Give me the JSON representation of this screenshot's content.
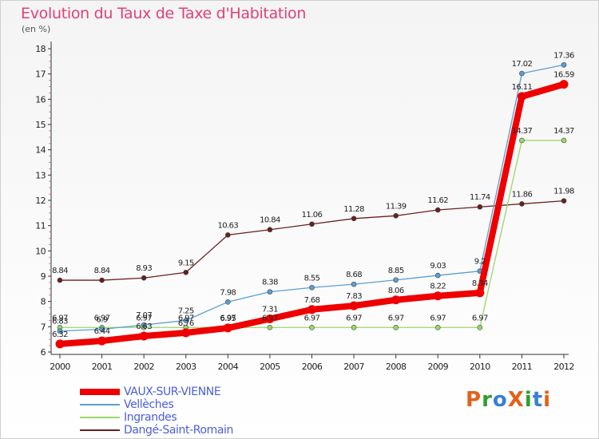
{
  "title": "Evolution du Taux de Taxe d'Habitation",
  "subtitle": "(en %)",
  "logo": {
    "text": "ProXiti",
    "letters": [
      {
        "ch": "P",
        "color": "#e2611a"
      },
      {
        "ch": "r",
        "color": "#2e9e2e"
      },
      {
        "ch": "o",
        "color": "#3a7fd6"
      },
      {
        "ch": "X",
        "color": "#e2611a"
      },
      {
        "ch": "i",
        "color": "#2e9e2e"
      },
      {
        "ch": "t",
        "color": "#3a7fd6"
      },
      {
        "ch": "i",
        "color": "#e2611a"
      }
    ]
  },
  "chart_data": {
    "type": "line",
    "title": "Evolution du Taux de Taxe d'Habitation",
    "ylabel": "(en %)",
    "xlabel": "",
    "x": [
      "2000",
      "2001",
      "2002",
      "2003",
      "2004",
      "2005",
      "2006",
      "2007",
      "2008",
      "2009",
      "2010",
      "2011",
      "2012"
    ],
    "ylim": [
      6,
      18
    ],
    "yticks": [
      6,
      7,
      8,
      9,
      10,
      11,
      12,
      13,
      14,
      15,
      16,
      17,
      18
    ],
    "grid": false,
    "legend_position": "bottom-left",
    "series": [
      {
        "name": "VAUX-SUR-VIENNE",
        "color": "#ee0000",
        "width": 8,
        "values": [
          6.32,
          6.44,
          6.63,
          6.76,
          6.95,
          7.31,
          7.68,
          7.83,
          8.06,
          8.22,
          8.34,
          16.11,
          16.59
        ],
        "labels": [
          "6.32",
          "6.44",
          "6.63",
          "6.76",
          "6.95",
          "7.31",
          "7.68",
          "7.83",
          "8.06",
          "8.22",
          "8.34",
          "16.11",
          "16.59"
        ]
      },
      {
        "name": "Vellèches",
        "color": "#5a9fd4",
        "width": 1.3,
        "values": [
          6.83,
          6.9,
          7.07,
          7.25,
          7.98,
          8.38,
          8.55,
          8.68,
          8.85,
          9.03,
          9.2,
          17.02,
          17.36
        ],
        "labels": [
          "6.83",
          "6.9",
          "7.07",
          "7.25",
          "7.98",
          "8.38",
          "8.55",
          "8.68",
          "8.85",
          "9.03",
          "9.2",
          "17.02",
          "17.36"
        ]
      },
      {
        "name": "Ingrandes",
        "color": "#9ad86a",
        "width": 1.3,
        "values": [
          6.97,
          6.97,
          6.97,
          6.97,
          6.97,
          6.97,
          6.97,
          6.97,
          6.97,
          6.97,
          6.97,
          14.37,
          14.37
        ],
        "labels": [
          "6.97",
          "6.97",
          "6.97",
          "6.97",
          "6.97",
          "6.97",
          "6.97",
          "6.97",
          "6.97",
          "6.97",
          "6.97",
          "14.37",
          "14.37"
        ]
      },
      {
        "name": "Dangé-Saint-Romain",
        "color": "#6b1f1f",
        "width": 1.3,
        "values": [
          8.84,
          8.84,
          8.93,
          9.15,
          10.63,
          10.84,
          11.06,
          11.28,
          11.39,
          11.62,
          11.74,
          11.86,
          11.98
        ],
        "labels": [
          "8.84",
          "8.84",
          "8.93",
          "9.15",
          "10.63",
          "10.84",
          "11.06",
          "11.28",
          "11.39",
          "11.62",
          "11.74",
          "11.86",
          "11.98"
        ]
      }
    ]
  }
}
